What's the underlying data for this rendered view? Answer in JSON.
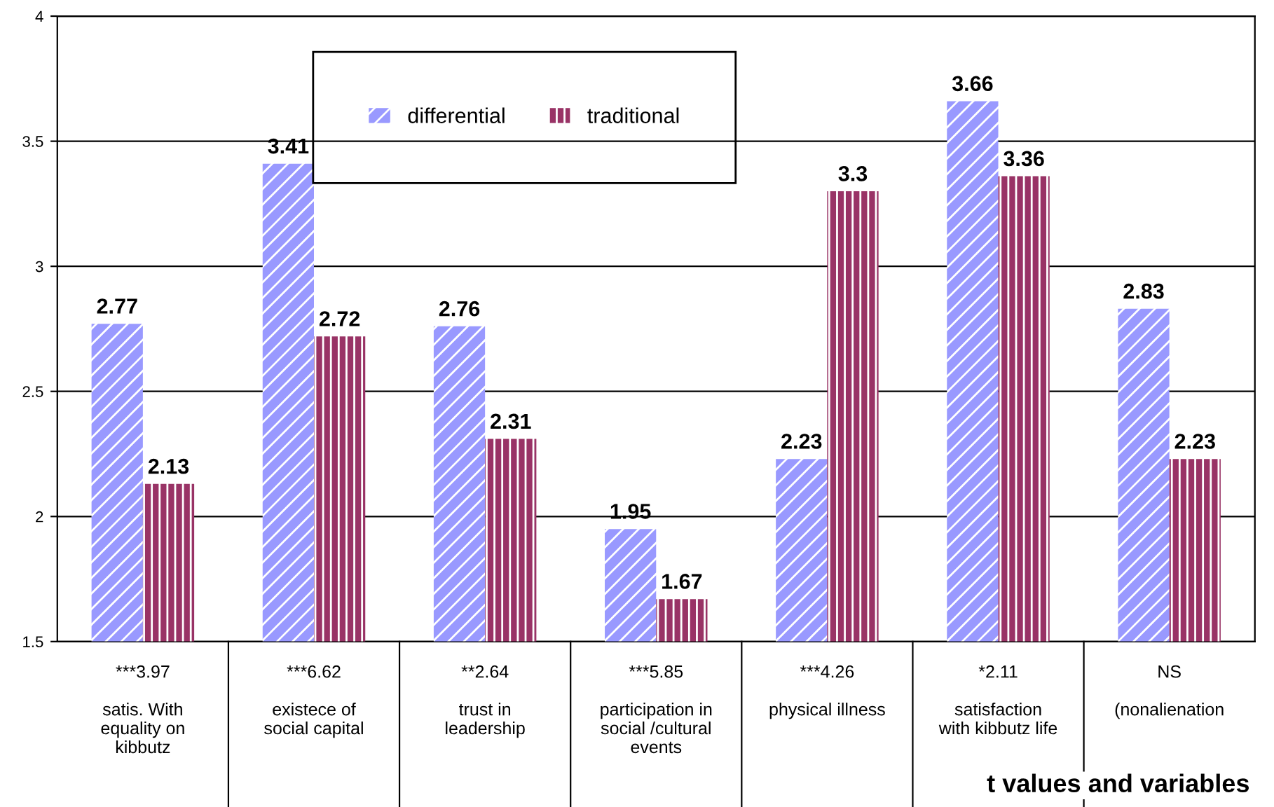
{
  "chart_data": {
    "type": "bar",
    "categories": [
      "***3.97\n\nsatis. With\nequality on\nkibbutz",
      "***6.62\n\nexistece of\nsocial capital",
      "**2.64\n\ntrust in\nleadership",
      "***5.85\n\nparticipation in\nsocial /cultural\nevents",
      "***4.26\n\nphysical illness",
      "*2.11\n\nsatisfaction\nwith kibbutz life",
      "NS\n\n(nonalienation"
    ],
    "series": [
      {
        "name": "differential",
        "color": "#9999ff",
        "values": [
          2.77,
          3.41,
          2.76,
          1.95,
          2.23,
          3.66,
          2.83
        ]
      },
      {
        "name": "traditional",
        "color": "#993366",
        "values": [
          2.13,
          2.72,
          2.31,
          1.67,
          3.3,
          3.36,
          2.23
        ]
      }
    ],
    "annotations": [
      "t values and variables"
    ],
    "ylim": [
      1.5,
      4
    ],
    "yticks": [
      1.5,
      2,
      2.5,
      3,
      3.5,
      4
    ],
    "grid": "y",
    "legend": "top",
    "data_labels": true
  }
}
